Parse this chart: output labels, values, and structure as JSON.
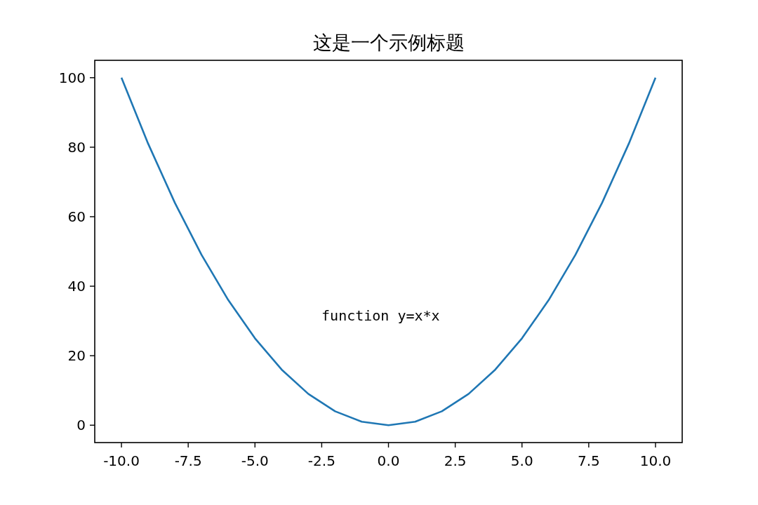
{
  "chart_data": {
    "type": "line",
    "title": "这是一个示例标题",
    "x": [
      -10,
      -9,
      -8,
      -7,
      -6,
      -5,
      -4,
      -3,
      -2,
      -1,
      0,
      1,
      2,
      3,
      4,
      5,
      6,
      7,
      8,
      9,
      10
    ],
    "series": [
      {
        "color": "#1f77b4",
        "values": [
          100,
          81,
          64,
          49,
          36,
          25,
          16,
          9,
          4,
          1,
          0,
          1,
          4,
          9,
          16,
          25,
          36,
          49,
          64,
          81,
          100
        ]
      }
    ],
    "xlim": [
      -11,
      11
    ],
    "ylim": [
      -5,
      105
    ],
    "xticks": [
      {
        "value": -10,
        "label": "-10.0"
      },
      {
        "value": -7.5,
        "label": "-7.5"
      },
      {
        "value": -5,
        "label": "-5.0"
      },
      {
        "value": -2.5,
        "label": "-2.5"
      },
      {
        "value": 0,
        "label": "0.0"
      },
      {
        "value": 2.5,
        "label": "2.5"
      },
      {
        "value": 5,
        "label": "5.0"
      },
      {
        "value": 7.5,
        "label": "7.5"
      },
      {
        "value": 10,
        "label": "10.0"
      }
    ],
    "yticks": [
      0,
      20,
      40,
      60,
      80,
      100
    ],
    "annotations": [
      "function y=x*x"
    ]
  }
}
